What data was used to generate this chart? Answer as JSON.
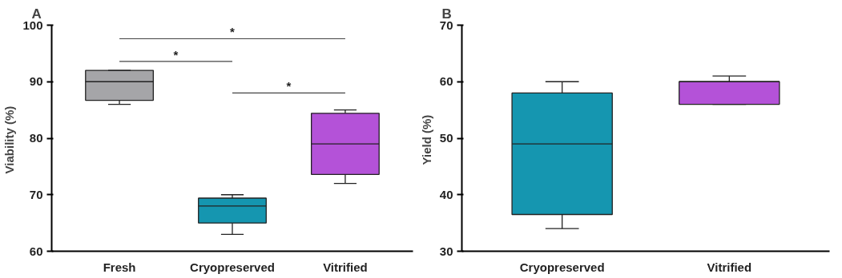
{
  "chart_data": [
    {
      "type": "box",
      "title": "A",
      "ylabel": "Viability  (%)",
      "categories": [
        "Fresh",
        "Cryopreserved",
        "Vitrified"
      ],
      "ylim": [
        60,
        100
      ],
      "yticks": [
        60,
        70,
        80,
        90,
        100
      ],
      "grid": false,
      "series": [
        {
          "colors": [
            "#a5a5a8",
            "#1596b0",
            "#b452d8"
          ],
          "boxes": [
            {
              "low": 86,
              "q1": 86.7,
              "median": 90,
              "q3": 92,
              "high": 92
            },
            {
              "low": 63,
              "q1": 65,
              "median": 68,
              "q3": 69.4,
              "high": 70
            },
            {
              "low": 72,
              "q1": 73.6,
              "median": 79,
              "q3": 84.4,
              "high": 85
            }
          ]
        }
      ],
      "annotations": [
        "*",
        "*",
        "*"
      ]
    },
    {
      "type": "box",
      "title": "B",
      "ylabel": "Yield  (%)",
      "categories": [
        "Cryopreserved",
        "Vitrified"
      ],
      "ylim": [
        30,
        70
      ],
      "yticks": [
        30,
        40,
        50,
        60,
        70
      ],
      "grid": false,
      "series": [
        {
          "colors": [
            "#1596b0",
            "#b452d8"
          ],
          "boxes": [
            {
              "low": 34,
              "q1": 36.5,
              "median": 49,
              "q3": 58,
              "high": 60
            },
            {
              "low": 56,
              "q1": 56,
              "median": 60,
              "q3": 60,
              "high": 61
            }
          ]
        }
      ]
    }
  ]
}
